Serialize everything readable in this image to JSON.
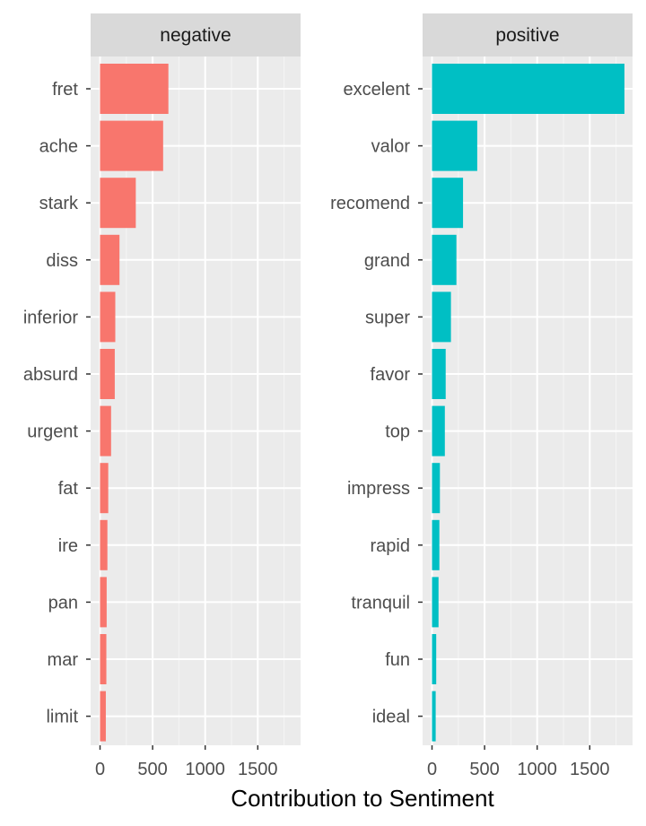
{
  "chart_data": {
    "type": "bar",
    "orientation": "horizontal",
    "facet_by": "sentiment",
    "xlabel": "Contribution to Sentiment",
    "ylabel": "",
    "xlim": [
      0,
      1920
    ],
    "xticks": [
      0,
      500,
      1000,
      1500
    ],
    "xtick_labels": [
      "0",
      "500",
      "1000",
      "1500"
    ],
    "grid": true,
    "background": "#ebebeb",
    "strip_fill": "#d9d9d9",
    "panels": [
      {
        "name": "negative",
        "color": "#f8766d",
        "categories": [
          "fret",
          "ache",
          "stark",
          "diss",
          "inferior",
          "absurd",
          "urgent",
          "fat",
          "ire",
          "pan",
          "mar",
          "limit"
        ],
        "values": [
          650,
          600,
          340,
          185,
          145,
          140,
          105,
          78,
          70,
          63,
          60,
          55
        ]
      },
      {
        "name": "positive",
        "color": "#00bfc4",
        "categories": [
          "excelent",
          "valor",
          "recomend",
          "grand",
          "super",
          "favor",
          "top",
          "impress",
          "rapid",
          "tranquil",
          "fun",
          "ideal"
        ],
        "values": [
          1830,
          430,
          295,
          232,
          180,
          130,
          122,
          75,
          70,
          62,
          40,
          35
        ]
      }
    ]
  }
}
